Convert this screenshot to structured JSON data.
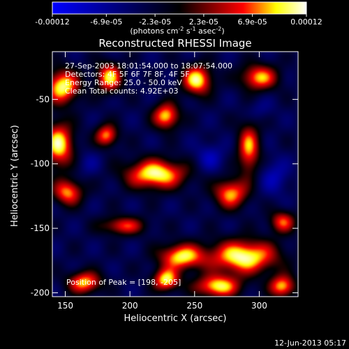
{
  "colorbar": {
    "tick_labels": [
      "-0.00012",
      "-6.9e-05",
      "-2.3e-05",
      "2.3e-05",
      "6.9e-05",
      "0.00012"
    ],
    "tick_values": [
      -0.00012,
      -6.9e-05,
      -2.3e-05,
      2.3e-05,
      6.9e-05,
      0.00012
    ],
    "unit_main": "(photons cm",
    "unit_exp1": "-2",
    "unit_s": " s",
    "unit_exp2": "-1",
    "unit_asec": " asec",
    "unit_exp3": "-2",
    "unit_close": ")",
    "colors": [
      "#0000ff",
      "#000000",
      "#ff0000",
      "#ffff00",
      "#ffffff"
    ]
  },
  "plot": {
    "title": "Reconstructed RHESSI Image",
    "annotations": [
      "27-Sep-2003 18:01:54.000 to 18:07:54.000",
      "Detectors: 4F 5F 6F 7F 8F, 4F 5F",
      "Energy Range: 25.0 - 50.0 keV",
      "Clean     Total counts: 4.92E+03"
    ],
    "peak_label": "Position of Peak = [198, -205]",
    "xlabel": "Heliocentric X (arcsec)",
    "ylabel": "Heliocentric Y (arcsec)"
  },
  "footer": {
    "timestamp": "12-Jun-2013 05:17"
  },
  "chart_data": {
    "type": "heatmap",
    "title": "Reconstructed RHESSI Image",
    "xlabel": "Heliocentric X (arcsec)",
    "ylabel": "Heliocentric Y (arcsec)",
    "xlim": [
      140,
      330
    ],
    "ylim": [
      -203,
      -13
    ],
    "x_ticks": [
      150,
      200,
      250,
      300
    ],
    "y_ticks": [
      -50,
      -100,
      -150,
      -200
    ],
    "x_tick_labels": [
      "150",
      "200",
      "250",
      "300"
    ],
    "y_tick_labels": [
      "-50",
      "-100",
      "-150",
      "-200"
    ],
    "zlim": [
      -0.00012,
      0.00012
    ],
    "background_level": -3.5e-05,
    "blobs": [
      {
        "x": 148,
        "y": -40,
        "sx": 9,
        "sy": 9,
        "v": 0.000108
      },
      {
        "x": 184,
        "y": -33,
        "sx": 7,
        "sy": 8,
        "v": 9.2e-05
      },
      {
        "x": 252,
        "y": -35,
        "sx": 8,
        "sy": 8,
        "v": 0.000105
      },
      {
        "x": 300,
        "y": -33,
        "sx": 10,
        "sy": 7,
        "v": 8.5e-05
      },
      {
        "x": 228,
        "y": -63,
        "sx": 7,
        "sy": 7,
        "v": 9.5e-05
      },
      {
        "x": 145,
        "y": -85,
        "sx": 8,
        "sy": 12,
        "v": 0.000105
      },
      {
        "x": 182,
        "y": -78,
        "sx": 6,
        "sy": 6,
        "v": 8e-05
      },
      {
        "x": 292,
        "y": -88,
        "sx": 6,
        "sy": 14,
        "v": 8e-05
      },
      {
        "x": 220,
        "y": -108,
        "sx": 16,
        "sy": 8,
        "v": 0.000112
      },
      {
        "x": 152,
        "y": -122,
        "sx": 8,
        "sy": 7,
        "v": 8e-05
      },
      {
        "x": 195,
        "y": -148,
        "sx": 12,
        "sy": 5,
        "v": 6e-05
      },
      {
        "x": 278,
        "y": -123,
        "sx": 9,
        "sy": 8,
        "v": 8.5e-05
      },
      {
        "x": 318,
        "y": -145,
        "sx": 7,
        "sy": 6,
        "v": 6.5e-05
      },
      {
        "x": 288,
        "y": -172,
        "sx": 18,
        "sy": 9,
        "v": 0.000115
      },
      {
        "x": 240,
        "y": -172,
        "sx": 12,
        "sy": 7,
        "v": 9.8e-05
      },
      {
        "x": 228,
        "y": -190,
        "sx": 7,
        "sy": 6,
        "v": 0.0001
      },
      {
        "x": 268,
        "y": -195,
        "sx": 12,
        "sy": 6,
        "v": 0.0001
      },
      {
        "x": 165,
        "y": -192,
        "sx": 9,
        "sy": 6,
        "v": 8.8e-05
      },
      {
        "x": 318,
        "y": -195,
        "sx": 7,
        "sy": 6,
        "v": 9e-05
      },
      {
        "x": 262,
        "y": -95,
        "sx": 8,
        "sy": 8,
        "v": -8e-05
      },
      {
        "x": 312,
        "y": -110,
        "sx": 8,
        "sy": 10,
        "v": -8e-05
      },
      {
        "x": 300,
        "y": -58,
        "sx": 8,
        "sy": 6,
        "v": -6e-05
      },
      {
        "x": 168,
        "y": -100,
        "sx": 7,
        "sy": 7,
        "v": -6e-05
      }
    ]
  }
}
